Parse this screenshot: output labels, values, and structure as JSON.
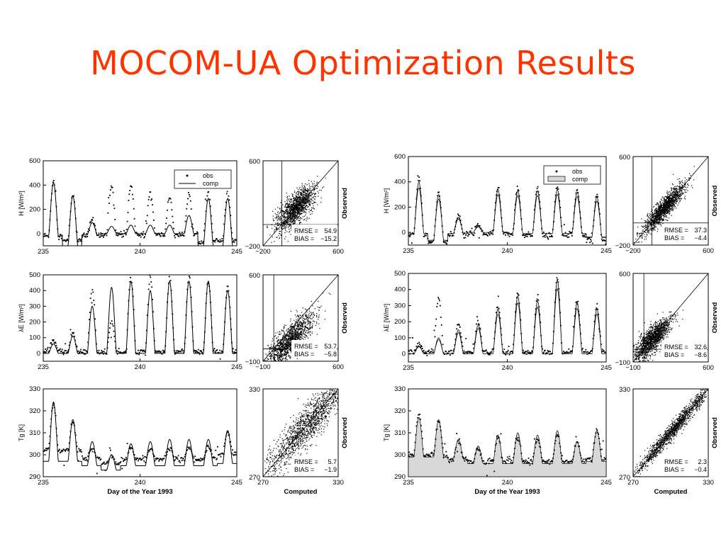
{
  "slide": {
    "title": "MOCOM-UA Optimization Results"
  },
  "chart_data": [
    {
      "id": "ts-H-left",
      "type": "line",
      "ylabel": "H [W/m²]",
      "xlabel": "",
      "xlim": [
        235,
        245
      ],
      "ylim": [
        -100,
        600
      ],
      "xticks": [
        "235",
        "240",
        "245"
      ],
      "yticks": [
        "0",
        "200",
        "400",
        "600"
      ],
      "legend": {
        "placement": "top-right",
        "entries": [
          "obs",
          "comp"
        ]
      },
      "series": [
        {
          "name": "obs",
          "style": "points",
          "days_peak": [
            430,
            320,
            120,
            390,
            400,
            340,
            300,
            310,
            340
          ],
          "days_min": [
            -20,
            -60,
            -15,
            -10,
            -10,
            -10,
            -10,
            -10,
            -60
          ]
        },
        {
          "name": "comp",
          "style": "line",
          "days_peak": [
            420,
            310,
            90,
            60,
            70,
            70,
            70,
            150,
            290
          ],
          "days_min": [
            -20,
            -100,
            -10,
            0,
            0,
            0,
            0,
            0,
            -100
          ]
        }
      ]
    },
    {
      "id": "sc-H-left",
      "type": "scatter",
      "xlabel": "",
      "ylabel": "Observed",
      "xlim": [
        -200,
        600
      ],
      "ylim": [
        -200,
        600
      ],
      "xticks": [
        "−200",
        "600"
      ],
      "yticks": [
        "−200",
        "600"
      ],
      "stats": [
        {
          "label": "RMSE =",
          "value": "54.9"
        },
        {
          "label": "BIAS =",
          "value": "−15.2"
        }
      ],
      "cloud": {
        "center": [
          150,
          150
        ],
        "along": 130,
        "across": 55
      }
    },
    {
      "id": "ts-E-left",
      "type": "line",
      "ylabel": "λE [W/m²]",
      "xlabel": "",
      "xlim": [
        235,
        245
      ],
      "ylim": [
        -50,
        500
      ],
      "xticks": [
        "235",
        "240",
        "245"
      ],
      "yticks": [
        "0",
        "100",
        "200",
        "300",
        "400",
        "500"
      ],
      "series": [
        {
          "name": "obs",
          "style": "points",
          "days_peak": [
            80,
            130,
            410,
            200,
            500,
            490,
            480,
            500,
            460,
            430
          ],
          "days_min": [
            20,
            10,
            10,
            10,
            10,
            10,
            10,
            10,
            10,
            10
          ]
        },
        {
          "name": "comp",
          "style": "line",
          "days_peak": [
            60,
            110,
            300,
            420,
            460,
            400,
            460,
            460,
            460,
            400
          ],
          "days_min": [
            0,
            0,
            0,
            0,
            0,
            0,
            0,
            0,
            0,
            0
          ]
        }
      ]
    },
    {
      "id": "sc-E-left",
      "type": "scatter",
      "xlabel": "",
      "ylabel": "Observed",
      "xlim": [
        -100,
        600
      ],
      "ylim": [
        -100,
        600
      ],
      "xticks": [
        "−100",
        "600"
      ],
      "yticks": [
        "−100",
        "600"
      ],
      "stats": [
        {
          "label": "RMSE =",
          "value": "53.7"
        },
        {
          "label": "BIAS =",
          "value": "−5.8"
        }
      ],
      "cloud": {
        "center": [
          150,
          60
        ],
        "along": 150,
        "across": 50
      }
    },
    {
      "id": "ts-T-left",
      "type": "line",
      "ylabel": "Tg [K]",
      "xlabel": "Day of the Year 1993",
      "xlim": [
        235,
        245
      ],
      "ylim": [
        290,
        330
      ],
      "xticks": [
        "235",
        "240",
        "245"
      ],
      "yticks": [
        "290",
        "300",
        "310",
        "320",
        "330"
      ],
      "series": [
        {
          "name": "obs",
          "style": "points",
          "days_peak": [
            323,
            315,
            303,
            299,
            303,
            303,
            303,
            303,
            304,
            310
          ],
          "days_min": [
            302,
            302,
            298,
            296,
            298,
            298,
            298,
            298,
            298,
            300
          ]
        },
        {
          "name": "comp",
          "style": "line",
          "days_peak": [
            324,
            316,
            306,
            300,
            305,
            306,
            307,
            307,
            307,
            311
          ],
          "days_min": [
            297,
            297,
            295,
            293,
            295,
            295,
            295,
            295,
            295,
            296
          ]
        }
      ]
    },
    {
      "id": "sc-T-left",
      "type": "scatter",
      "xlabel": "Computed",
      "ylabel": "Observed",
      "xlim": [
        270,
        330
      ],
      "ylim": [
        270,
        330
      ],
      "xticks": [
        "270",
        "330"
      ],
      "yticks": [
        "270",
        "330"
      ],
      "stats": [
        {
          "label": "RMSE =",
          "value": "5.7"
        },
        {
          "label": "BIAS =",
          "value": "−1.9"
        }
      ],
      "cloud": {
        "center": [
          305,
          305
        ],
        "along": 22,
        "across": 5
      }
    },
    {
      "id": "ts-H-right",
      "type": "line",
      "ylabel": "H [W/m²]",
      "xlabel": "",
      "xlim": [
        235,
        245
      ],
      "ylim": [
        -100,
        600
      ],
      "xticks": [
        "235",
        "240",
        "245"
      ],
      "yticks": [
        "0",
        "200",
        "400",
        "600"
      ],
      "legend": {
        "placement": "top-right",
        "entries": [
          "obs",
          "comp"
        ]
      },
      "series": [
        {
          "name": "obs",
          "style": "points",
          "days_peak": [
            430,
            320,
            140,
            60,
            360,
            350,
            350,
            360,
            340,
            300
          ],
          "days_min": [
            -20,
            -80,
            -20,
            -10,
            -10,
            -20,
            -20,
            -20,
            -20,
            -60
          ]
        },
        {
          "name": "comp",
          "style": "band",
          "days_peak": [
            400,
            300,
            120,
            50,
            340,
            330,
            330,
            340,
            320,
            280
          ],
          "days_min": [
            -10,
            -70,
            -10,
            0,
            0,
            -10,
            -10,
            -10,
            -10,
            -40
          ]
        }
      ]
    },
    {
      "id": "sc-H-right",
      "type": "scatter",
      "xlabel": "",
      "ylabel": "Observed",
      "xlim": [
        -200,
        600
      ],
      "ylim": [
        -200,
        600
      ],
      "xticks": [
        "−200",
        "600"
      ],
      "yticks": [
        "−200",
        "600"
      ],
      "stats": [
        {
          "label": "RMSE =",
          "value": "37.3"
        },
        {
          "label": "BIAS =",
          "value": "−4.4"
        }
      ],
      "cloud": {
        "center": [
          130,
          130
        ],
        "along": 150,
        "across": 35
      }
    },
    {
      "id": "ts-E-right",
      "type": "line",
      "ylabel": "λE [W/m²]",
      "xlabel": "",
      "xlim": [
        235,
        245
      ],
      "ylim": [
        -50,
        500
      ],
      "xticks": [
        "235",
        "240",
        "245"
      ],
      "yticks": [
        "0",
        "100",
        "200",
        "300",
        "400",
        "500"
      ],
      "series": [
        {
          "name": "obs",
          "style": "points",
          "days_peak": [
            60,
            350,
            180,
            200,
            300,
            380,
            350,
            470,
            330,
            290
          ],
          "days_min": [
            10,
            10,
            10,
            10,
            10,
            10,
            10,
            10,
            10,
            10
          ]
        },
        {
          "name": "comp",
          "style": "band",
          "days_peak": [
            50,
            100,
            150,
            180,
            280,
            360,
            330,
            460,
            320,
            280
          ],
          "days_min": [
            0,
            0,
            0,
            0,
            0,
            0,
            0,
            0,
            0,
            0
          ]
        }
      ]
    },
    {
      "id": "sc-E-right",
      "type": "scatter",
      "xlabel": "",
      "ylabel": "Observed",
      "xlim": [
        -100,
        600
      ],
      "ylim": [
        -100,
        600
      ],
      "xticks": [
        "−100",
        "600"
      ],
      "yticks": [
        "−100",
        "600"
      ],
      "stats": [
        {
          "label": "RMSE =",
          "value": "32.6"
        },
        {
          "label": "BIAS =",
          "value": "−8.6"
        }
      ],
      "cloud": {
        "center": [
          80,
          80
        ],
        "along": 110,
        "across": 40
      }
    },
    {
      "id": "ts-T-right",
      "type": "line",
      "ylabel": "Tg [K]",
      "xlabel": "Day of the Year 1993",
      "xlim": [
        235,
        245
      ],
      "ylim": [
        290,
        330
      ],
      "xticks": [
        "235",
        "240",
        "245"
      ],
      "yticks": [
        "290",
        "300",
        "310",
        "320",
        "330"
      ],
      "series": [
        {
          "name": "obs",
          "style": "points",
          "days_peak": [
            319,
            316,
            306,
            303,
            308,
            308,
            307,
            309,
            306,
            311
          ],
          "days_min": [
            300,
            300,
            298,
            297,
            297,
            297,
            297,
            297,
            297,
            298
          ]
        },
        {
          "name": "comp",
          "style": "band",
          "days_peak": [
            317,
            316,
            307,
            304,
            309,
            310,
            309,
            311,
            306,
            311
          ],
          "days_min": [
            299,
            299,
            298,
            296,
            296,
            296,
            296,
            296,
            296,
            297
          ]
        }
      ]
    },
    {
      "id": "sc-T-right",
      "type": "scatter",
      "xlabel": "Computed",
      "ylabel": "Observed",
      "xlim": [
        270,
        330
      ],
      "ylim": [
        270,
        330
      ],
      "xticks": [
        "270",
        "330"
      ],
      "yticks": [
        "270",
        "330"
      ],
      "stats": [
        {
          "label": "RMSE =",
          "value": "2.3"
        },
        {
          "label": "BIAS =",
          "value": "−0.4"
        }
      ],
      "cloud": {
        "center": [
          303,
          303
        ],
        "along": 22,
        "across": 2
      }
    }
  ]
}
